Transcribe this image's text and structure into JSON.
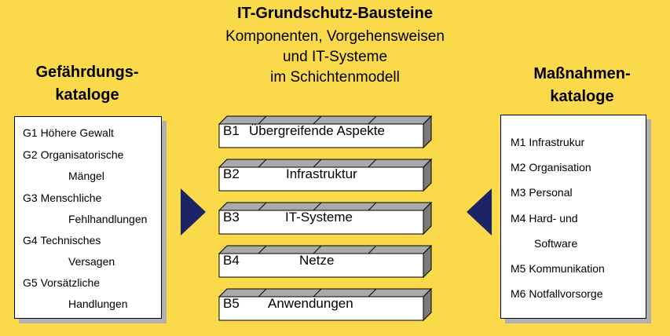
{
  "header": {
    "title": "IT-Grundschutz-Bausteine",
    "subtitle_lines": [
      "Komponenten, Vorgehensweisen",
      "und IT-Systeme",
      "im Schichtenmodell"
    ]
  },
  "left": {
    "title_lines": [
      "Gefährdungs-",
      "kataloge"
    ],
    "lines": [
      "G1 Höhere Gewalt",
      "G2 Organisatorische",
      "Mängel",
      "G3 Menschliche",
      "Fehlhandlungen",
      "G4 Technisches",
      "Versagen",
      "G5 Vorsätzliche",
      "Handlungen"
    ]
  },
  "right": {
    "title_lines": [
      "Maßnahmen-",
      "kataloge"
    ],
    "lines": [
      "M1 Infrastrukur",
      "M2 Organisation",
      "M3 Personal",
      "M4 Hard- und",
      "Software",
      "M5 Kommunikation",
      "M6 Notfallvorsorge"
    ]
  },
  "modules": [
    {
      "code": "B1",
      "name": "Übergreifende Aspekte"
    },
    {
      "code": "B2",
      "name": "Infrastruktur"
    },
    {
      "code": "B3",
      "name": "IT-Systeme"
    },
    {
      "code": "B4",
      "name": "Netze"
    },
    {
      "code": "B5",
      "name": "Anwendungen"
    }
  ],
  "colors": {
    "background": "#fad94a",
    "arrow": "#1c2466",
    "brick_side": "#7a7a7a",
    "brick_top": "#a9a9a9"
  }
}
